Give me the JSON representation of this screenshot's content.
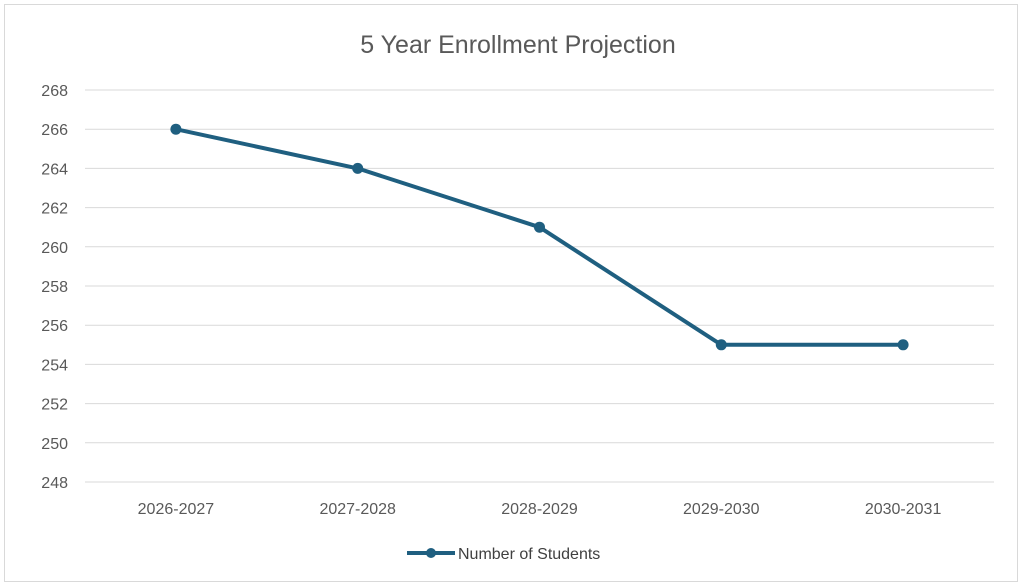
{
  "chart_data": {
    "type": "line",
    "title": "5 Year Enrollment Projection",
    "xlabel": "",
    "ylabel": "",
    "categories": [
      "2026-2027",
      "2027-2028",
      "2028-2029",
      "2029-2030",
      "2030-2031"
    ],
    "series": [
      {
        "name": "Number of Students",
        "values": [
          266,
          264,
          261,
          255,
          255
        ],
        "color": "#1f5f80"
      }
    ],
    "ylim": [
      248,
      268
    ],
    "ytick_step": 2,
    "grid": true,
    "legend": "bottom",
    "markers": true
  }
}
